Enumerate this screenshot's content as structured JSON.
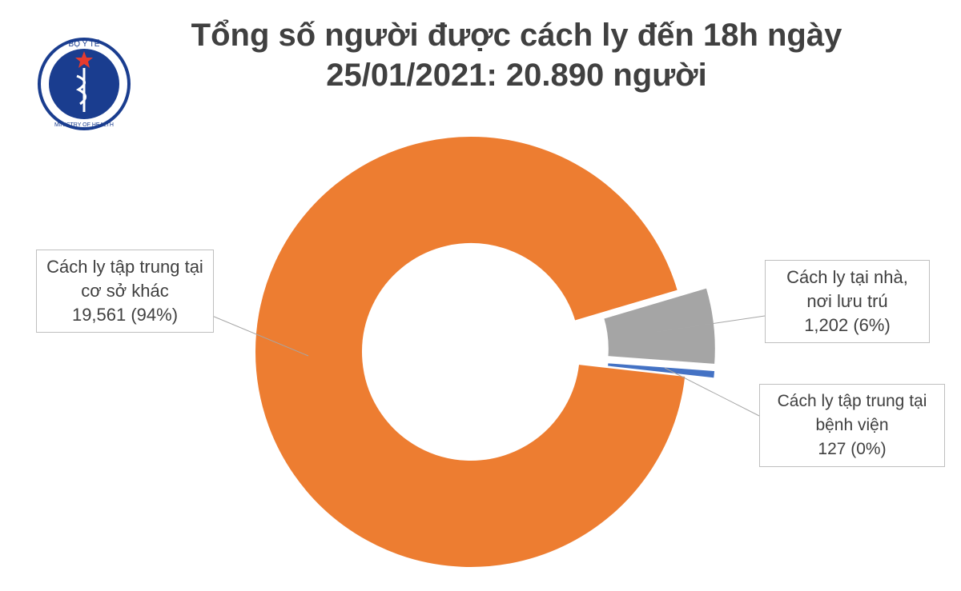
{
  "logo": {
    "top": "BỘ Y TẾ",
    "bottom": "MINISTRY OF HEALTH"
  },
  "chart_data": {
    "type": "donut",
    "title": [
      "Tổng số người được cách ly đến 18h ngày",
      "25/01/2021: 20.890 người"
    ],
    "categories": [
      "Cách ly tập trung tại cơ sở khác",
      "Cách ly tại nhà, nơi lưu trú",
      "Cách ly tập trung tại bệnh viện"
    ],
    "values": [
      19561,
      1202,
      127
    ],
    "value_labels": [
      "19,561 (94%)",
      "1,202 (6%)",
      "127 (0%)"
    ],
    "colors": [
      "#ed7d31",
      "#a5a5a5",
      "#4472c4"
    ]
  }
}
